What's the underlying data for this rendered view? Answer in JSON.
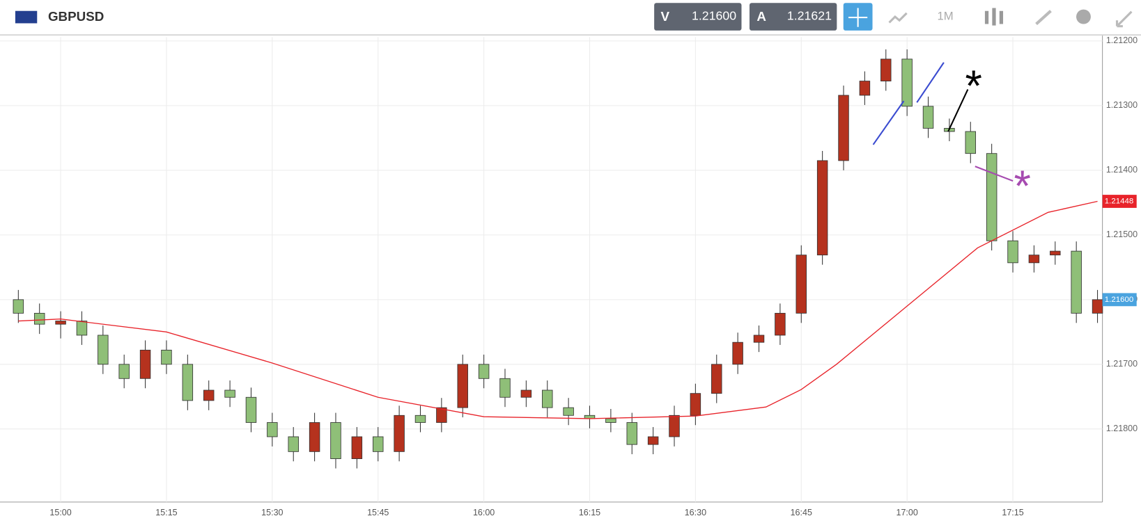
{
  "header": {
    "symbol": "GBPUSD",
    "bid_label": "V",
    "bid": "1.21600",
    "ask_label": "A",
    "ask": "1.21621",
    "timeframe": "1M"
  },
  "chart_data": {
    "type": "candlestick",
    "y_axis_inverted": true,
    "x": [
      894,
      897,
      900,
      903,
      906,
      909,
      912,
      915,
      918,
      921,
      924,
      927,
      930,
      933,
      936,
      939,
      942,
      945,
      948,
      951,
      954,
      957,
      960,
      963,
      966,
      969,
      972,
      975,
      978,
      981,
      984,
      987,
      990,
      993,
      996,
      999,
      1002,
      1005,
      1008,
      1011,
      1014,
      1017,
      1020,
      1023,
      1026,
      1029,
      1032,
      1035,
      1038,
      1041,
      1044,
      1047
    ],
    "open": [
      1.216,
      1.21621,
      1.21638,
      1.21633,
      1.21655,
      1.217,
      1.21722,
      1.21678,
      1.217,
      1.21756,
      1.2174,
      1.21751,
      1.2179,
      1.21812,
      1.21835,
      1.2179,
      1.21846,
      1.21812,
      1.21835,
      1.21779,
      1.2179,
      1.21767,
      1.217,
      1.21722,
      1.21751,
      1.2174,
      1.21767,
      1.21779,
      1.21784,
      1.2179,
      1.21824,
      1.21812,
      1.21779,
      1.21745,
      1.217,
      1.21666,
      1.21655,
      1.21621,
      1.21531,
      1.21385,
      1.21284,
      1.21262,
      1.21228,
      1.21301,
      1.21335,
      1.2134,
      1.21374,
      1.21509,
      1.21543,
      1.21531,
      1.21525,
      1.21621
    ],
    "high": [
      1.21636,
      1.21653,
      1.2166,
      1.2167,
      1.21715,
      1.21737,
      1.21737,
      1.21715,
      1.21771,
      1.21771,
      1.21766,
      1.21805,
      1.21827,
      1.2185,
      1.2185,
      1.21861,
      1.21861,
      1.2185,
      1.2185,
      1.21805,
      1.21805,
      1.21782,
      1.21737,
      1.21766,
      1.21766,
      1.21782,
      1.21794,
      1.21799,
      1.21805,
      1.21839,
      1.21839,
      1.21827,
      1.21794,
      1.2176,
      1.21715,
      1.21681,
      1.2167,
      1.21636,
      1.21546,
      1.214,
      1.21299,
      1.21277,
      1.21316,
      1.2135,
      1.21355,
      1.21389,
      1.21524,
      1.21558,
      1.21558,
      1.21546,
      1.21636,
      1.21636
    ],
    "low": [
      1.21585,
      1.21606,
      1.21618,
      1.21618,
      1.2164,
      1.21685,
      1.21663,
      1.21663,
      1.21685,
      1.21725,
      1.21725,
      1.21736,
      1.21775,
      1.21797,
      1.21775,
      1.21775,
      1.21797,
      1.21797,
      1.21764,
      1.21764,
      1.21752,
      1.21685,
      1.21685,
      1.21707,
      1.21725,
      1.21725,
      1.21752,
      1.21764,
      1.21769,
      1.21775,
      1.21797,
      1.21764,
      1.2173,
      1.21685,
      1.21651,
      1.2164,
      1.21606,
      1.21516,
      1.2137,
      1.21269,
      1.21247,
      1.21213,
      1.21213,
      1.21286,
      1.2132,
      1.21325,
      1.21359,
      1.21494,
      1.21516,
      1.2151,
      1.2151,
      1.21585
    ],
    "close": [
      1.21621,
      1.21638,
      1.21633,
      1.21655,
      1.217,
      1.21722,
      1.21678,
      1.217,
      1.21756,
      1.2174,
      1.21751,
      1.2179,
      1.21812,
      1.21835,
      1.2179,
      1.21846,
      1.21812,
      1.21835,
      1.21779,
      1.2179,
      1.21767,
      1.217,
      1.21722,
      1.21751,
      1.2174,
      1.21767,
      1.21779,
      1.21784,
      1.2179,
      1.21824,
      1.21812,
      1.21779,
      1.21745,
      1.217,
      1.21666,
      1.21655,
      1.21621,
      1.21531,
      1.21385,
      1.21284,
      1.21262,
      1.21228,
      1.21301,
      1.21335,
      1.2134,
      1.21374,
      1.21509,
      1.21543,
      1.21531,
      1.21525,
      1.21621,
      1.216
    ],
    "up_color": "#8fbf78",
    "down_color": "#b5321e",
    "moving_average": {
      "color": "#e8232a",
      "x": [
        894,
        900,
        915,
        930,
        945,
        960,
        975,
        990,
        1000,
        1005,
        1010,
        1020,
        1030,
        1040,
        1047
      ],
      "values": [
        1.21633,
        1.2163,
        1.2165,
        1.21698,
        1.21751,
        1.21781,
        1.21784,
        1.2178,
        1.21766,
        1.21739,
        1.217,
        1.2161,
        1.2152,
        1.21465,
        1.21448
      ],
      "last_label": "1.21448"
    },
    "current_price": {
      "value": 1.216,
      "label": "1.21600",
      "color": "#4aa3df"
    },
    "xlim": [
      891.4,
      1047.7
    ],
    "ylim": [
      1.21194,
      1.21913
    ],
    "xticks": [
      {
        "value": 900,
        "label": "15:00"
      },
      {
        "value": 915,
        "label": "15:15"
      },
      {
        "value": 930,
        "label": "15:30"
      },
      {
        "value": 945,
        "label": "15:45"
      },
      {
        "value": 960,
        "label": "16:00"
      },
      {
        "value": 975,
        "label": "16:15"
      },
      {
        "value": 990,
        "label": "16:30"
      },
      {
        "value": 1005,
        "label": "16:45"
      },
      {
        "value": 1020,
        "label": "17:00"
      },
      {
        "value": 1035,
        "label": "17:15"
      }
    ],
    "yticks": [
      {
        "value": 1.212,
        "label": "1.21200"
      },
      {
        "value": 1.213,
        "label": "1.21300"
      },
      {
        "value": 1.214,
        "label": "1.21400"
      },
      {
        "value": 1.215,
        "label": "1.21500"
      },
      {
        "value": 1.216,
        "label": "1.21600"
      },
      {
        "value": 1.217,
        "label": "1.21700"
      },
      {
        "value": 1.218,
        "label": "1.21800"
      }
    ],
    "grid": true
  }
}
